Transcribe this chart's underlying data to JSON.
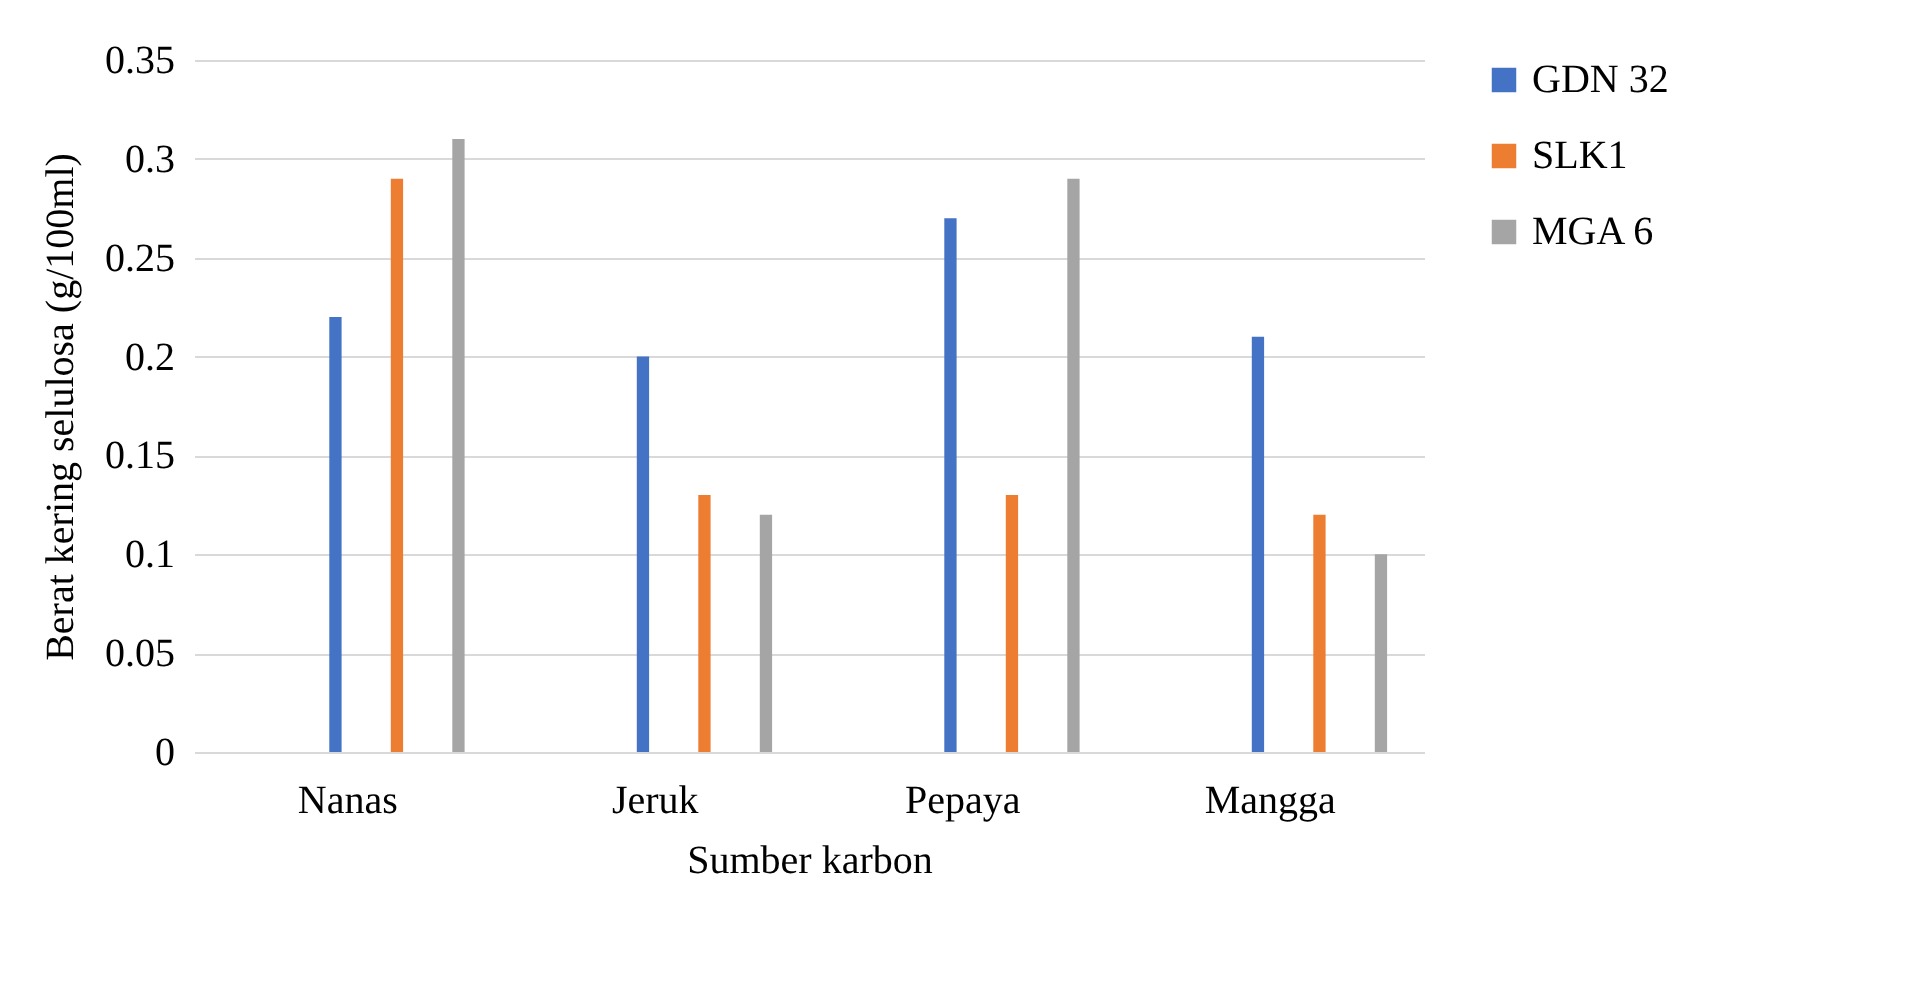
{
  "chart_data": {
    "type": "bar",
    "xlabel": "Sumber karbon",
    "ylabel": "Berat kering selulosa (g/100ml)",
    "categories": [
      "Nanas",
      "Jeruk",
      "Pepaya",
      "Mangga"
    ],
    "series": [
      {
        "name": "GDN 32",
        "color": "#4472c4",
        "values": [
          0.22,
          0.2,
          0.27,
          0.21
        ]
      },
      {
        "name": "SLK1",
        "color": "#ed7d31",
        "values": [
          0.29,
          0.13,
          0.13,
          0.12
        ]
      },
      {
        "name": "MGA 6",
        "color": "#a5a5a5",
        "values": [
          0.31,
          0.12,
          0.29,
          0.1
        ]
      }
    ],
    "ylim": [
      0,
      0.35
    ],
    "yticks": [
      0,
      0.05,
      0.1,
      0.15,
      0.2,
      0.25,
      0.3,
      0.35
    ],
    "grid": "y",
    "legend": "right"
  }
}
